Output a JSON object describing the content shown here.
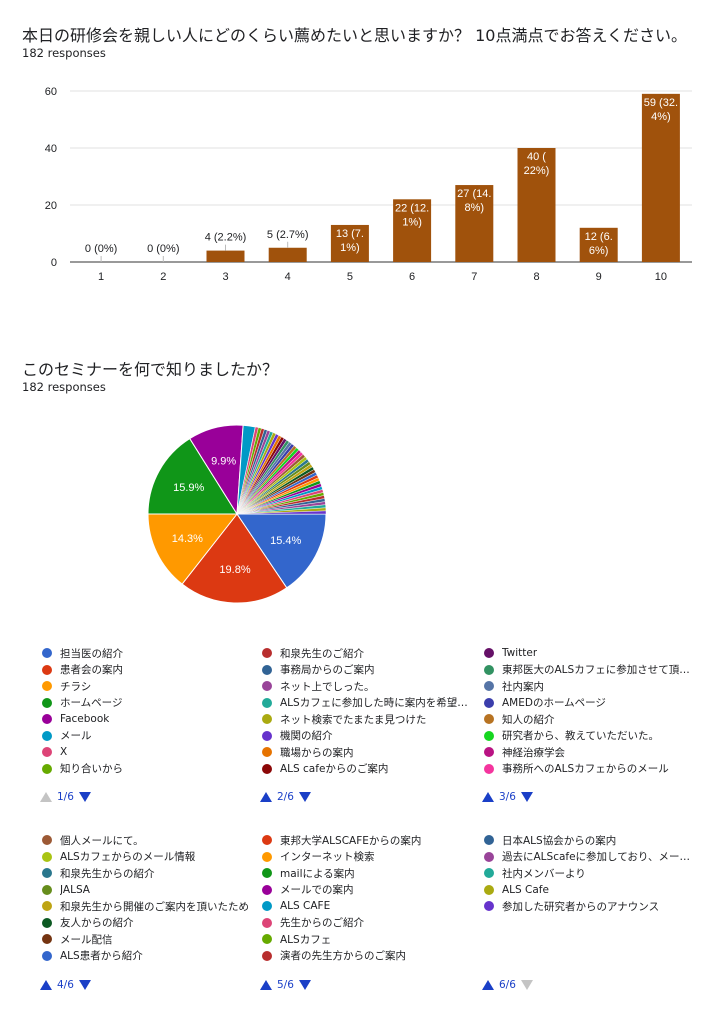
{
  "q1": {
    "title": "本日の研修会を親しい人にどのくらい薦めたいと思いますか？ 10点満点でお答えください。",
    "responses": "182 responses"
  },
  "q2": {
    "title": "このセミナーを何で知りましたか？",
    "responses": "182 responses"
  },
  "chart_data": [
    {
      "type": "bar",
      "categories": [
        "1",
        "2",
        "3",
        "4",
        "5",
        "6",
        "7",
        "8",
        "9",
        "10"
      ],
      "values": [
        0,
        0,
        4,
        5,
        13,
        22,
        27,
        40,
        12,
        59
      ],
      "data_labels": [
        "0 (0%)",
        "0 (0%)",
        "4 (2.2%)",
        "5 (2.7%)",
        "13 (7.\n1%)",
        "22 (12.\n1%)",
        "27 (14.\n8%)",
        "40 (\n22%)",
        "12 (6.\n6%)",
        "59 (32.\n4%)"
      ],
      "yticks": [
        "0",
        "20",
        "40",
        "60"
      ],
      "ylim": [
        0,
        60
      ],
      "color": "#a0520c",
      "grid": true
    },
    {
      "type": "pie",
      "slices": [
        {
          "label": "担当医の紹介",
          "percent": 15.4,
          "display": "15.4%",
          "color": "#3366cc"
        },
        {
          "label": "患者会の案内",
          "percent": 19.8,
          "display": "19.8%",
          "color": "#dc3912"
        },
        {
          "label": "チラシ",
          "percent": 14.3,
          "display": "14.3%",
          "color": "#ff9900"
        },
        {
          "label": "ホームページ",
          "percent": 15.9,
          "display": "15.9%",
          "color": "#109618"
        },
        {
          "label": "Facebook",
          "percent": 9.9,
          "display": "9.9%",
          "color": "#990099"
        },
        {
          "label": "メール",
          "percent": 2.2,
          "display": "",
          "color": "#0099c6"
        },
        {
          "label": "X",
          "percent": 0.55,
          "display": "",
          "color": "#dd4477"
        },
        {
          "label": "知り合いから",
          "percent": 0.55,
          "display": "",
          "color": "#66aa00"
        },
        {
          "label": "和泉先生のご紹介",
          "percent": 0.55,
          "display": "",
          "color": "#b82e2e"
        },
        {
          "label": "事務局からのご案内",
          "percent": 0.55,
          "display": "",
          "color": "#316395"
        },
        {
          "label": "ネット上でしった。",
          "percent": 0.55,
          "display": "",
          "color": "#994499"
        },
        {
          "label": "ALSカフェに参加した時に案内を希望…",
          "percent": 0.55,
          "display": "",
          "color": "#22aa99"
        },
        {
          "label": "ネット検索でたまたま見つけた",
          "percent": 0.55,
          "display": "",
          "color": "#aaaa11"
        },
        {
          "label": "機関の紹介",
          "percent": 0.55,
          "display": "",
          "color": "#6633cc"
        },
        {
          "label": "職場からの案内",
          "percent": 0.55,
          "display": "",
          "color": "#e67300"
        },
        {
          "label": "ALS cafeからのご案内",
          "percent": 0.55,
          "display": "",
          "color": "#8b0707"
        },
        {
          "label": "Twitter",
          "percent": 0.55,
          "display": "",
          "color": "#651067"
        },
        {
          "label": "東邦医大のALSカフェに参加させて頂…",
          "percent": 0.55,
          "display": "",
          "color": "#329262"
        },
        {
          "label": "社内案内",
          "percent": 0.55,
          "display": "",
          "color": "#5574a6"
        },
        {
          "label": "AMEDのホームページ",
          "percent": 0.55,
          "display": "",
          "color": "#3b3eac"
        },
        {
          "label": "知人の紹介",
          "percent": 0.55,
          "display": "",
          "color": "#b77322"
        },
        {
          "label": "研究者から、教えていただいた。",
          "percent": 0.55,
          "display": "",
          "color": "#16d620"
        },
        {
          "label": "神経治療学会",
          "percent": 0.55,
          "display": "",
          "color": "#b91383"
        },
        {
          "label": "事務所へのALSカフェからのメール",
          "percent": 0.55,
          "display": "",
          "color": "#f4359e"
        },
        {
          "label": "個人メールにて。",
          "percent": 0.55,
          "display": "",
          "color": "#9c5935"
        },
        {
          "label": "ALSカフェからのメール情報",
          "percent": 0.55,
          "display": "",
          "color": "#a9c413"
        },
        {
          "label": "和泉先生からの紹介",
          "percent": 0.55,
          "display": "",
          "color": "#2a778d"
        },
        {
          "label": "JALSA",
          "percent": 0.55,
          "display": "",
          "color": "#668d1c"
        },
        {
          "label": "和泉先生から開催のご案内を頂いたため",
          "percent": 0.55,
          "display": "",
          "color": "#bea413"
        },
        {
          "label": "友人からの紹介",
          "percent": 0.55,
          "display": "",
          "color": "#0c5922"
        },
        {
          "label": "メール配信",
          "percent": 0.55,
          "display": "",
          "color": "#743411"
        },
        {
          "label": "ALS患者から紹介",
          "percent": 0.55,
          "display": "",
          "color": "#3366cc"
        },
        {
          "label": "東邦大学ALSCAFEからの案内",
          "percent": 0.55,
          "display": "",
          "color": "#dc3912"
        },
        {
          "label": "インターネット検索",
          "percent": 0.55,
          "display": "",
          "color": "#ff9900"
        },
        {
          "label": "mailによる案内",
          "percent": 0.55,
          "display": "",
          "color": "#109618"
        },
        {
          "label": "メールでの案内",
          "percent": 0.55,
          "display": "",
          "color": "#990099"
        },
        {
          "label": "ALS CAFE",
          "percent": 0.55,
          "display": "",
          "color": "#0099c6"
        },
        {
          "label": "先生からのご紹介",
          "percent": 0.55,
          "display": "",
          "color": "#dd4477"
        },
        {
          "label": "ALSカフェ",
          "percent": 0.55,
          "display": "",
          "color": "#66aa00"
        },
        {
          "label": "演者の先生方からのご案内",
          "percent": 0.55,
          "display": "",
          "color": "#b82e2e"
        },
        {
          "label": "日本ALS協会からの案内",
          "percent": 0.55,
          "display": "",
          "color": "#316395"
        },
        {
          "label": "過去にALScafeに参加しており、メー…",
          "percent": 0.55,
          "display": "",
          "color": "#994499"
        },
        {
          "label": "社内メンバーより",
          "percent": 0.55,
          "display": "",
          "color": "#22aa99"
        },
        {
          "label": "ALS Cafe",
          "percent": 0.55,
          "display": "",
          "color": "#aaaa11"
        },
        {
          "label": "参加した研究者からのアナウンス",
          "percent": 0.55,
          "display": "",
          "color": "#6633cc"
        }
      ]
    }
  ],
  "legend_pages": [
    {
      "pager": "1/6",
      "up_enabled": false,
      "down_enabled": true
    },
    {
      "pager": "2/6",
      "up_enabled": true,
      "down_enabled": true
    },
    {
      "pager": "3/6",
      "up_enabled": true,
      "down_enabled": true
    },
    {
      "pager": "4/6",
      "up_enabled": true,
      "down_enabled": true
    },
    {
      "pager": "5/6",
      "up_enabled": true,
      "down_enabled": true
    },
    {
      "pager": "6/6",
      "up_enabled": true,
      "down_enabled": false
    }
  ]
}
